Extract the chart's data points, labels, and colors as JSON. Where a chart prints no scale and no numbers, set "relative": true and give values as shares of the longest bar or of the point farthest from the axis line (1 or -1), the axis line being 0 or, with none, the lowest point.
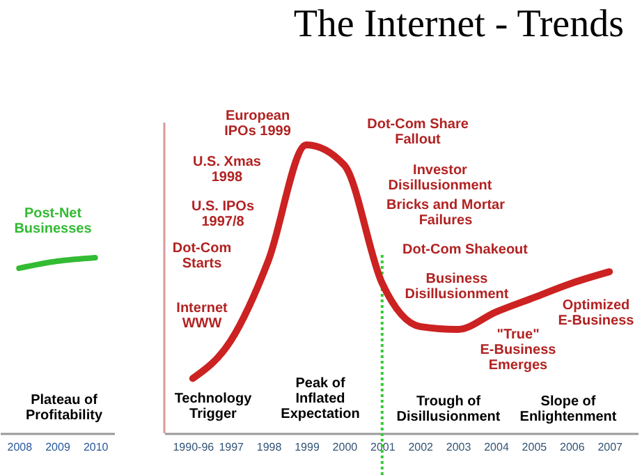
{
  "chart_data": [
    {
      "type": "line",
      "categories": [
        "2008",
        "2009",
        "2010"
      ],
      "relative": true,
      "series": [
        {
          "name": "Post-Net\nBusinesses",
          "color": "#33bb33",
          "values": [
            0.94,
            0.98,
            1
          ]
        }
      ],
      "annotations": [
        "Plateau of\nProfitability"
      ]
    },
    {
      "type": "line",
      "title": "The Internet - Trends",
      "categories": [
        "1990-96",
        "1997",
        "1998",
        "1999",
        "2000",
        "2001",
        "2002",
        "2003",
        "2004",
        "2005",
        "2006",
        "2007"
      ],
      "relative": true,
      "series": [
        {
          "color": "#cc2222",
          "values": [
            0.19,
            0.32,
            0.6,
            1,
            0.93,
            0.52,
            0.37,
            0.36,
            0.42,
            0.47,
            0.52,
            0.56
          ]
        }
      ],
      "ref_lines": [
        {
          "axis": "x",
          "value": "2001",
          "color": "#33cc33",
          "line_style": "dotted"
        }
      ],
      "annotations": [
        "European\nIPOs 1999",
        "U.S. Xmas\n1998",
        "U.S. IPOs\n1997/8",
        "Dot-Com\nStarts",
        "Internet\nWWW",
        "Technology\nTrigger",
        "Peak of\nInflated\nExpectation",
        "Dot-Com Share\nFallout",
        "Investor\nDisillusionment",
        "Bricks and Mortar\nFailures",
        "Dot-Com Shakeout",
        "Business\nDisillusionment",
        "\"True\"\nE-Business\nEmerges",
        "Optimized\nE-Business",
        "Trough of\nDisillusionment",
        "Slope of\nEnlightenment"
      ]
    }
  ]
}
